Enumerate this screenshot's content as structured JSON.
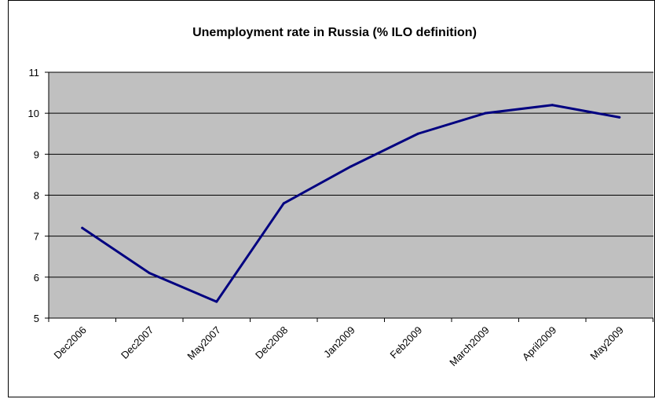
{
  "chart_data": {
    "type": "line",
    "title": "Unemployment rate in Russia (% ILO definition)",
    "xlabel": "",
    "ylabel": "",
    "categories": [
      "Dec2006",
      "Dec2007",
      "May2007",
      "Dec2008",
      "Jan2009",
      "Feb2009",
      "March2009",
      "April2009",
      "May2009"
    ],
    "series": [
      {
        "values": [
          7.2,
          6.1,
          5.4,
          7.8,
          8.7,
          9.5,
          10.0,
          10.2,
          9.9
        ]
      }
    ],
    "ylim": [
      5,
      11
    ],
    "yticks": [
      "5",
      "6",
      "7",
      "8",
      "9",
      "10",
      "11"
    ],
    "grid": true,
    "legend": "none",
    "colors": {
      "line": "#000080",
      "plot_background": "#c0c0c0",
      "grid": "#000000"
    }
  }
}
